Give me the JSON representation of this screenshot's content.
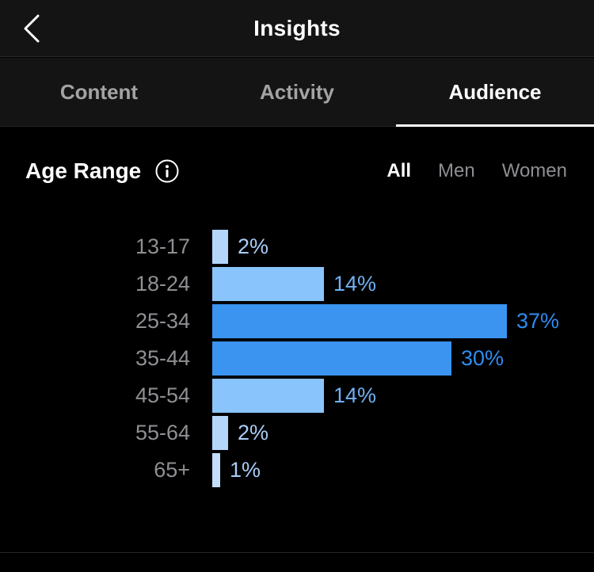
{
  "header": {
    "title": "Insights",
    "back_icon": "chevron-left"
  },
  "tabs": [
    {
      "label": "Content",
      "active": false
    },
    {
      "label": "Activity",
      "active": false
    },
    {
      "label": "Audience",
      "active": true
    }
  ],
  "section": {
    "title": "Age Range",
    "info_icon": "info-circle",
    "filters": [
      {
        "label": "All",
        "active": true
      },
      {
        "label": "Men",
        "active": false
      },
      {
        "label": "Women",
        "active": false
      }
    ]
  },
  "chart_data": {
    "type": "bar",
    "orientation": "horizontal",
    "title": "Age Range",
    "xlabel": "",
    "ylabel": "",
    "xlim": [
      0,
      40
    ],
    "grid": false,
    "legend": false,
    "categories": [
      "13-17",
      "18-24",
      "25-34",
      "35-44",
      "45-54",
      "55-64",
      "65+"
    ],
    "values": [
      2,
      14,
      37,
      30,
      14,
      2,
      1
    ],
    "value_labels": [
      "2%",
      "14%",
      "37%",
      "30%",
      "14%",
      "2%",
      "1%"
    ],
    "value_suffix": "%",
    "bar_colors": [
      "#b5d6fa",
      "#8ac4fc",
      "#3a94f0",
      "#3a94f0",
      "#8ac4fc",
      "#b5d6fa",
      "#c4ddfb"
    ],
    "value_label_colors": [
      "#a9cdf8",
      "#70b1f4",
      "#2f8bf0",
      "#2f8bf0",
      "#70b1f4",
      "#a9cdf8",
      "#a9cdf8"
    ]
  },
  "colors": {
    "background": "#000000",
    "header_background": "#141414",
    "divider": "#2b2b2b",
    "accent_blue": "#3a94f0",
    "inactive_text": "#8e8e93",
    "active_text": "#ffffff"
  }
}
